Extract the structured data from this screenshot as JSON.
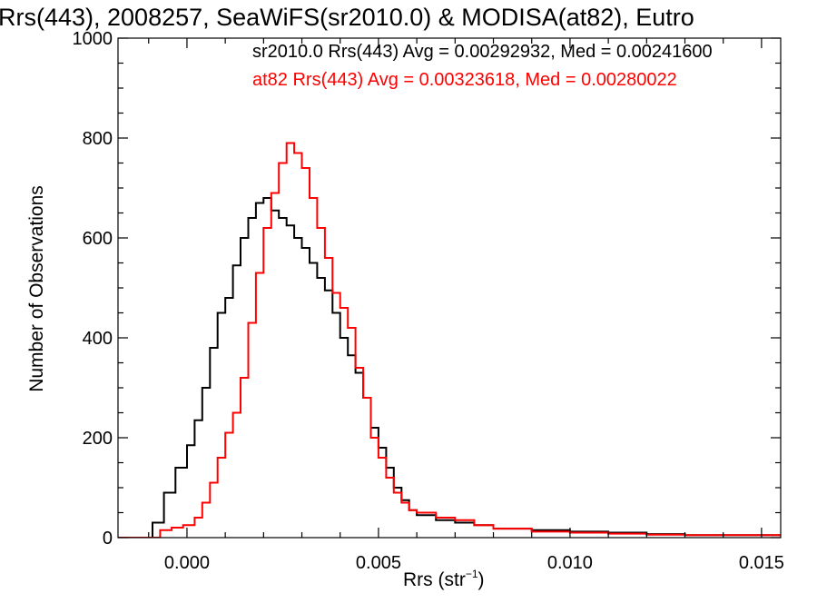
{
  "chart_data": {
    "type": "line",
    "title": "Rrs(443), 2008257, SeaWiFS(sr2010.0) & MODISA(at82), Eutro",
    "xlabel": {
      "text": "Rrs (str",
      "sup": "−1",
      "close": ")"
    },
    "ylabel": "Number of Observations",
    "xlim": [
      -0.0018,
      0.0155
    ],
    "ylim": [
      0,
      1000
    ],
    "xticks": [
      0.0,
      0.005,
      0.01,
      0.015
    ],
    "xtick_labels": [
      "0.000",
      "0.005",
      "0.010",
      "0.015"
    ],
    "yticks": [
      0,
      200,
      400,
      600,
      800,
      1000
    ],
    "ytick_labels": [
      "0",
      "200",
      "400",
      "600",
      "800",
      "1000"
    ],
    "step": true,
    "series": [
      {
        "name": "sr2010.0",
        "color": "#000000",
        "stat_text": "sr2010.0 Rrs(443) Avg = 0.00292932, Med = 0.00241600",
        "points": [
          [
            -0.0018,
            0
          ],
          [
            -0.0011,
            0
          ],
          [
            -0.0009,
            30
          ],
          [
            -0.0006,
            90
          ],
          [
            -0.0003,
            140
          ],
          [
            0.0,
            185
          ],
          [
            0.0002,
            235
          ],
          [
            0.0004,
            300
          ],
          [
            0.0006,
            380
          ],
          [
            0.0008,
            450
          ],
          [
            0.001,
            480
          ],
          [
            0.0012,
            545
          ],
          [
            0.0014,
            600
          ],
          [
            0.0016,
            640
          ],
          [
            0.0018,
            670
          ],
          [
            0.002,
            680
          ],
          [
            0.0022,
            655
          ],
          [
            0.0024,
            640
          ],
          [
            0.0026,
            625
          ],
          [
            0.0028,
            600
          ],
          [
            0.003,
            580
          ],
          [
            0.0032,
            550
          ],
          [
            0.0034,
            520
          ],
          [
            0.0036,
            495
          ],
          [
            0.0038,
            450
          ],
          [
            0.004,
            400
          ],
          [
            0.0042,
            365
          ],
          [
            0.0044,
            330
          ],
          [
            0.0046,
            280
          ],
          [
            0.0048,
            220
          ],
          [
            0.005,
            180
          ],
          [
            0.0052,
            140
          ],
          [
            0.0054,
            100
          ],
          [
            0.0056,
            75
          ],
          [
            0.0058,
            55
          ],
          [
            0.006,
            45
          ],
          [
            0.0065,
            35
          ],
          [
            0.007,
            30
          ],
          [
            0.0075,
            25
          ],
          [
            0.008,
            18
          ],
          [
            0.009,
            15
          ],
          [
            0.01,
            12
          ],
          [
            0.011,
            10
          ],
          [
            0.012,
            7
          ],
          [
            0.013,
            5
          ],
          [
            0.014,
            5
          ],
          [
            0.015,
            5
          ],
          [
            0.0155,
            3
          ]
        ]
      },
      {
        "name": "at82",
        "color": "#ff0000",
        "stat_text": "at82 Rrs(443) Avg = 0.00323618, Med = 0.00280022",
        "points": [
          [
            -0.0018,
            0
          ],
          [
            -0.0009,
            0
          ],
          [
            -0.0007,
            15
          ],
          [
            -0.0004,
            20
          ],
          [
            -0.0001,
            25
          ],
          [
            0.0002,
            40
          ],
          [
            0.0004,
            70
          ],
          [
            0.0006,
            110
          ],
          [
            0.0008,
            160
          ],
          [
            0.001,
            210
          ],
          [
            0.0012,
            250
          ],
          [
            0.0014,
            320
          ],
          [
            0.0016,
            430
          ],
          [
            0.0018,
            530
          ],
          [
            0.002,
            620
          ],
          [
            0.0022,
            690
          ],
          [
            0.0024,
            750
          ],
          [
            0.0026,
            790
          ],
          [
            0.0028,
            770
          ],
          [
            0.003,
            740
          ],
          [
            0.0032,
            680
          ],
          [
            0.0034,
            620
          ],
          [
            0.0036,
            560
          ],
          [
            0.0038,
            490
          ],
          [
            0.004,
            460
          ],
          [
            0.0042,
            420
          ],
          [
            0.0044,
            340
          ],
          [
            0.0046,
            280
          ],
          [
            0.0048,
            200
          ],
          [
            0.005,
            160
          ],
          [
            0.0052,
            120
          ],
          [
            0.0054,
            90
          ],
          [
            0.0056,
            70
          ],
          [
            0.0058,
            55
          ],
          [
            0.006,
            50
          ],
          [
            0.0065,
            40
          ],
          [
            0.007,
            35
          ],
          [
            0.0075,
            25
          ],
          [
            0.008,
            18
          ],
          [
            0.009,
            12
          ],
          [
            0.01,
            10
          ],
          [
            0.011,
            8
          ],
          [
            0.012,
            6
          ],
          [
            0.013,
            5
          ],
          [
            0.014,
            5
          ],
          [
            0.015,
            5
          ],
          [
            0.0155,
            3
          ]
        ]
      }
    ],
    "grid": false,
    "legend": "none"
  }
}
